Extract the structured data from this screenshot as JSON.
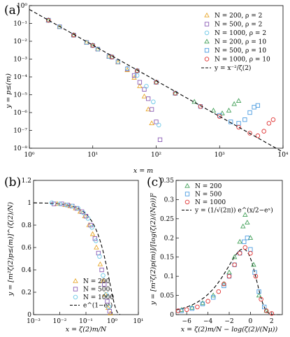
{
  "panels": {
    "a": {
      "label": "(a)"
    },
    "b": {
      "label": "(b)"
    },
    "c": {
      "label": "(c)"
    }
  },
  "colors": {
    "N200": "#e8a72a",
    "N500": "#8a5db5",
    "N1000": "#69c7e6",
    "N200b": "#44a15a",
    "N500b": "#4a9be0",
    "N1000b": "#e03232"
  },
  "chart_data": [
    {
      "type": "scatter",
      "panel": "a",
      "xlabel": "x = m",
      "ylabel": "y = p≤(m)",
      "xscale": "log",
      "yscale": "log",
      "xlim": [
        1,
        10000
      ],
      "ylim": [
        1e-08,
        1
      ],
      "xticks": [
        "10⁰",
        "10¹",
        "10²",
        "10³",
        "10⁴"
      ],
      "yticks": [
        "10⁰",
        "10⁻¹",
        "10⁻²",
        "10⁻³",
        "10⁻⁴",
        "10⁻⁵",
        "10⁻⁶",
        "10⁻⁷",
        "10⁻⁸"
      ],
      "legend": [
        {
          "label": "N = 200, ρ = 2",
          "marker": "triangle",
          "color": "#e8a72a"
        },
        {
          "label": "N = 500, ρ = 2",
          "marker": "square",
          "color": "#8a5db5"
        },
        {
          "label": "N = 1000, ρ = 2",
          "marker": "circle",
          "color": "#69c7e6"
        },
        {
          "label": "N = 200, ρ = 10",
          "marker": "triangle",
          "color": "#44a15a"
        },
        {
          "label": "N = 500, ρ = 10",
          "marker": "square",
          "color": "#4a9be0"
        },
        {
          "label": "N = 1000, ρ = 10",
          "marker": "circle",
          "color": "#e03232"
        },
        {
          "label": "y = x⁻²/ζ(2)",
          "marker": "dashed-line",
          "color": "#000000"
        }
      ],
      "series": [
        {
          "name": "N = 200, ρ = 2",
          "x": [
            2,
            3,
            5,
            8,
            12,
            18,
            25,
            35,
            45,
            55,
            65,
            75,
            85
          ],
          "y": [
            0.15,
            0.065,
            0.022,
            0.0085,
            0.0036,
            0.0014,
            0.00065,
            0.00024,
            9e-05,
            3e-05,
            8e-06,
            1.5e-06,
            2.5e-07
          ]
        },
        {
          "name": "N = 500, ρ = 2",
          "x": [
            2,
            3,
            5,
            8,
            12,
            18,
            25,
            35,
            45,
            55,
            65,
            75,
            85,
            100,
            115
          ],
          "y": [
            0.15,
            0.065,
            0.022,
            0.0085,
            0.0036,
            0.0014,
            0.0007,
            0.00028,
            0.00012,
            5e-05,
            2e-05,
            6e-06,
            1.5e-06,
            3e-07,
            3e-08
          ]
        },
        {
          "name": "N = 1000, ρ = 2",
          "x": [
            2,
            3,
            5,
            8,
            12,
            18,
            25,
            35,
            50,
            70,
            90,
            110
          ],
          "y": [
            0.15,
            0.065,
            0.022,
            0.0085,
            0.0036,
            0.0014,
            0.0007,
            0.0003,
            0.00012,
            3e-05,
            4e-06,
            2e-07
          ]
        },
        {
          "name": "N = 200, ρ = 10",
          "x": [
            2,
            5,
            10,
            20,
            50,
            100,
            200,
            400,
            800,
            1100,
            1400,
            1700,
            2000
          ],
          "y": [
            0.15,
            0.022,
            0.0058,
            0.0013,
            0.00022,
            5e-05,
            1.2e-05,
            4e-06,
            1.3e-06,
            9e-07,
            1.3e-06,
            3e-06,
            4.5e-06
          ]
        },
        {
          "name": "N = 500, ρ = 10",
          "x": [
            2,
            5,
            10,
            20,
            50,
            100,
            200,
            500,
            1000,
            1500,
            2000,
            2500,
            3000,
            3500,
            4000
          ],
          "y": [
            0.15,
            0.022,
            0.0058,
            0.0013,
            0.00022,
            5e-05,
            1.2e-05,
            2.2e-06,
            7e-07,
            3e-07,
            2.5e-07,
            4e-07,
            1e-06,
            2e-06,
            2.5e-06
          ]
        },
        {
          "name": "N = 1000, ρ = 10",
          "x": [
            2,
            5,
            10,
            20,
            50,
            100,
            200,
            500,
            1000,
            2000,
            3000,
            4000,
            5000,
            6000,
            7000
          ],
          "y": [
            0.15,
            0.022,
            0.0058,
            0.0013,
            0.00022,
            5e-05,
            1.2e-05,
            2.2e-06,
            6e-07,
            1.5e-07,
            7e-08,
            5e-08,
            9e-08,
            2.5e-07,
            4e-07
          ]
        },
        {
          "name": "y = x⁻²/ζ(2)",
          "x": [
            1,
            10000
          ],
          "y": [
            0.608,
            6.08e-09
          ]
        }
      ]
    },
    {
      "type": "scatter",
      "panel": "b",
      "xlabel": "x = ζ(2)m/N",
      "ylabel": "y = [m²ζ(2)p≤(m)]^(ζ(2)/N)",
      "xscale": "log",
      "xlim": [
        0.001,
        10
      ],
      "ylim": [
        0,
        1.2
      ],
      "xticks": [
        "10⁻³",
        "10⁻²",
        "10⁻¹",
        "10⁰",
        "10¹"
      ],
      "yticks": [
        "0",
        "0.2",
        "0.4",
        "0.6",
        "0.8",
        "1",
        "1.2"
      ],
      "legend": [
        {
          "label": "N = 200",
          "marker": "triangle",
          "color": "#e8a72a"
        },
        {
          "label": "N = 500",
          "marker": "square",
          "color": "#8a5db5"
        },
        {
          "label": "N = 1000",
          "marker": "circle",
          "color": "#69c7e6"
        },
        {
          "label": "e^(1−eˣ)",
          "marker": "dashed-line",
          "color": "#000000"
        }
      ],
      "series": [
        {
          "name": "N = 200",
          "x": [
            0.008,
            0.016,
            0.025,
            0.04,
            0.06,
            0.09,
            0.13,
            0.18,
            0.25,
            0.35,
            0.45,
            0.55,
            0.7,
            0.85
          ],
          "y": [
            0.99,
            0.98,
            0.97,
            0.95,
            0.92,
            0.88,
            0.8,
            0.72,
            0.6,
            0.45,
            0.3,
            0.18,
            0.06,
            0.01
          ]
        },
        {
          "name": "N = 500",
          "x": [
            0.006,
            0.012,
            0.02,
            0.03,
            0.045,
            0.07,
            0.1,
            0.15,
            0.22,
            0.3,
            0.4,
            0.5,
            0.65,
            0.8
          ],
          "y": [
            0.99,
            0.99,
            0.98,
            0.97,
            0.95,
            0.92,
            0.88,
            0.8,
            0.68,
            0.55,
            0.4,
            0.27,
            0.12,
            0.03
          ]
        },
        {
          "name": "N = 1000",
          "x": [
            0.005,
            0.01,
            0.018,
            0.03,
            0.05,
            0.08,
            0.12,
            0.17,
            0.24,
            0.33,
            0.45,
            0.6,
            0.75
          ],
          "y": [
            1.0,
            0.99,
            0.98,
            0.97,
            0.95,
            0.91,
            0.86,
            0.78,
            0.66,
            0.52,
            0.35,
            0.18,
            0.07
          ]
        }
      ]
    },
    {
      "type": "scatter",
      "panel": "c",
      "xlabel": "x = ζ(2)m/N − log(ζ(2)/(Nμ))",
      "ylabel": "y = [m²ζ(2)p(m)]/[log(ζ(2)/(Nρ))]²",
      "xlim": [
        -7,
        3
      ],
      "ylim": [
        0,
        0.35
      ],
      "xticks": [
        "−6",
        "−4",
        "−2",
        "0",
        "2"
      ],
      "yticks": [
        "0",
        "0.05",
        "0.1",
        "0.15",
        "0.2",
        "0.25",
        "0.3",
        "0.35"
      ],
      "legend": [
        {
          "label": "N = 200",
          "marker": "triangle",
          "color": "#44a15a"
        },
        {
          "label": "N = 500",
          "marker": "square",
          "color": "#4a9be0"
        },
        {
          "label": "N = 1000",
          "marker": "circle",
          "color": "#e03232"
        },
        {
          "label": "y = (1/√(2π)) e^(x/2−eˣ)",
          "marker": "dashed-line",
          "color": "#000000"
        }
      ],
      "series": [
        {
          "name": "N = 200",
          "x": [
            -6.5,
            -5.5,
            -4.5,
            -3.5,
            -2.5,
            -2.0,
            -1.5,
            -1.0,
            -0.7,
            -0.5,
            -0.3,
            0.0,
            0.3,
            0.8,
            1.5
          ],
          "y": [
            0.012,
            0.018,
            0.03,
            0.05,
            0.08,
            0.11,
            0.15,
            0.19,
            0.23,
            0.26,
            0.24,
            0.2,
            0.13,
            0.05,
            0.01
          ]
        },
        {
          "name": "N = 500",
          "x": [
            -6.5,
            -5.5,
            -4.5,
            -3.5,
            -2.5,
            -2.0,
            -1.5,
            -1.0,
            -0.6,
            -0.3,
            0.0,
            0.4,
            0.8,
            1.3
          ],
          "y": [
            0.01,
            0.016,
            0.028,
            0.045,
            0.075,
            0.1,
            0.13,
            0.16,
            0.19,
            0.2,
            0.17,
            0.11,
            0.06,
            0.02
          ]
        },
        {
          "name": "N = 1000",
          "x": [
            -6.8,
            -6.0,
            -5.0,
            -4.0,
            -3.0,
            -2.5,
            -2.0,
            -1.5,
            -1.0,
            -0.5,
            0.0,
            0.5,
            1.0,
            1.5,
            2.0
          ],
          "y": [
            0.01,
            0.013,
            0.02,
            0.035,
            0.06,
            0.08,
            0.1,
            0.13,
            0.16,
            0.175,
            0.16,
            0.1,
            0.04,
            0.01,
            0.003
          ]
        }
      ]
    }
  ]
}
